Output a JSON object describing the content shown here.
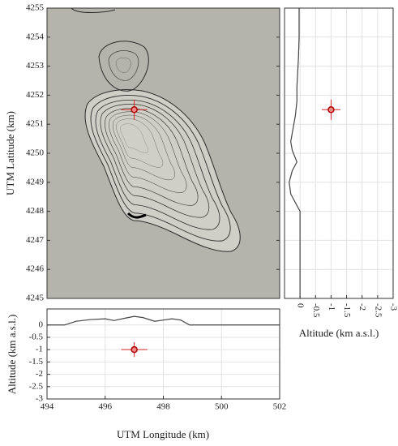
{
  "chart_data": [
    {
      "type": "map",
      "ylabel": "UTM Latitude (km)",
      "xlim": [
        494,
        502
      ],
      "ylim": [
        4245,
        4255
      ],
      "yticks": [
        4245,
        4246,
        4247,
        4248,
        4249,
        4250,
        4251,
        4252,
        4253,
        4254,
        4255
      ],
      "point": {
        "color": "#d62728",
        "position": [
          497
        ],
        "values": [
          4251.5
        ],
        "poserr": [
          0.45
        ],
        "err": [
          0.35
        ]
      }
    },
    {
      "type": "profile",
      "orientation": "vertical",
      "xlabel": "Altitude (km a.s.l.)",
      "xlim": [
        0.5,
        -3
      ],
      "ylim": [
        4245,
        4255
      ],
      "xticks": [
        0,
        -0.5,
        -1,
        -1.5,
        -2,
        -2.5,
        -3
      ],
      "grid": true,
      "line": {
        "color": "#444444",
        "position": [
          4245,
          4248,
          4248.2,
          4248.6,
          4249,
          4249.4,
          4249.7,
          4250.1,
          4250.4,
          4250.7,
          4251.3,
          4251.8,
          4252.3,
          4253.3,
          4254,
          4255
        ],
        "values": [
          0,
          0,
          0.1,
          0.3,
          0.35,
          0.25,
          0.1,
          0.25,
          0.3,
          0.25,
          0.15,
          0.1,
          0.1,
          0.05,
          0.03,
          0.03
        ]
      },
      "point": {
        "color": "#d62728",
        "position": [
          4251.5
        ],
        "values": [
          -1
        ],
        "poserr": [
          0.35
        ],
        "err": [
          0.3
        ]
      }
    },
    {
      "type": "profile",
      "orientation": "horizontal",
      "xlabel": "UTM Longitude (km)",
      "ylabel": "Altitude (km a.s.l.)",
      "xlim": [
        494,
        502
      ],
      "ylim": [
        -3,
        0.65
      ],
      "xticks": [
        494,
        496,
        498,
        500,
        502
      ],
      "yticks": [
        0,
        -0.5,
        -1,
        -1.5,
        -2,
        -2.5,
        -3
      ],
      "grid": true,
      "line": {
        "color": "#444444",
        "position": [
          494,
          494.6,
          495,
          495.5,
          496,
          496.3,
          496.7,
          497,
          497.3,
          497.7,
          498,
          498.3,
          498.6,
          498.9,
          500,
          502
        ],
        "values": [
          0,
          0,
          0.15,
          0.22,
          0.25,
          0.18,
          0.28,
          0.35,
          0.3,
          0.15,
          0.2,
          0.25,
          0.2,
          0,
          0,
          0
        ]
      },
      "point": {
        "color": "#d62728",
        "position": [
          497
        ],
        "values": [
          -1
        ],
        "poserr": [
          0.45
        ],
        "err": [
          0.3
        ]
      }
    }
  ]
}
